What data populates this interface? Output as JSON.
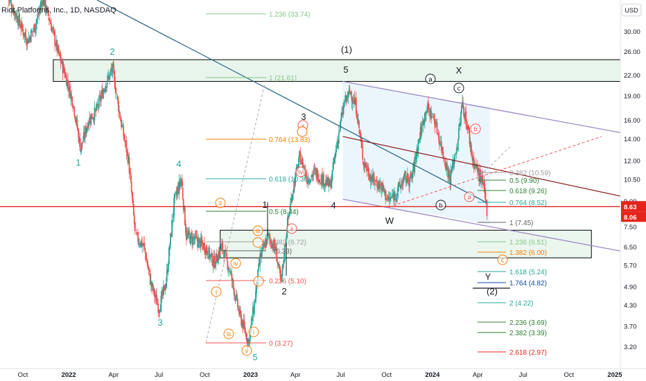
{
  "header": {
    "symbol_title": "Riot Platforms, Inc., 1D, NASDAQ"
  },
  "price_axis": {
    "currency": "USD",
    "ticks": [
      "30.00",
      "26.00",
      "22.00",
      "19.00",
      "16.00",
      "14.00",
      "12.00",
      "10.50",
      "9.00",
      "7.50",
      "6.50",
      "5.70",
      "4.90",
      "4.30",
      "3.70",
      "3.20"
    ],
    "current_price_label": "8.63",
    "second_price_label": "8.06",
    "colors": {
      "up": "#26a69a",
      "down": "#ef5350",
      "current_line": "#e5231b",
      "trend_line": "#2e6b8a",
      "channel": "#9c88c4",
      "rect_fill": "#e6f4ea"
    }
  },
  "time_axis": {
    "ticks": [
      "Oct",
      "2022",
      "Apr",
      "Jul",
      "Oct",
      "2023",
      "Apr",
      "Jul",
      "Oct",
      "2024",
      "Apr",
      "Jul",
      "Oct",
      "2025"
    ]
  },
  "wave_labels": [
    "1",
    "2",
    "3",
    "4",
    "5",
    "1",
    "2",
    "3",
    "4",
    "5",
    "(1)",
    "W",
    "X",
    "Y",
    "(2)"
  ],
  "circle_labels": [
    "a",
    "b",
    "c",
    "a",
    "b",
    "c",
    "ii",
    "iii",
    "iv",
    "i",
    "v",
    "i",
    "ii",
    "iii",
    "iv",
    "x"
  ],
  "fib_top": {
    "levels": [
      "1.236 (33.74)",
      "1 (21.61)",
      "0.764 (13.83)",
      "0.618 (10.30)",
      "0.5 (8.44)",
      "0.382 (6.72)",
      "0.236 (5.10)",
      "0 (3.27)",
      "(6.33)"
    ]
  },
  "fib_right": {
    "levels": [
      "0.382 (10.59)",
      "0.5 (9.90)",
      "0.618 (9.26)",
      "0.764 (8.52)",
      "1 (7.45)",
      "1.236 (6.51)",
      "1.382 (6.00)",
      "1.618 (5.24)",
      "1.764 (4.82)",
      "2 (4.22)",
      "2.236 (3.69)",
      "2.382 (3.39)",
      "2.618 (2.97)"
    ]
  },
  "chart_data": {
    "type": "candlestick",
    "title": "Riot Platforms, Inc., 1D, NASDAQ",
    "x_range": [
      "2021-09",
      "2025-01"
    ],
    "y_scale": "log",
    "y_range": [
      2.9,
      36
    ],
    "current_price": 8.63,
    "close_points": [
      [
        "2021-09-01",
        38
      ],
      [
        "2021-09-20",
        33
      ],
      [
        "2021-10-10",
        28
      ],
      [
        "2021-10-25",
        31
      ],
      [
        "2021-11-10",
        38
      ],
      [
        "2021-11-25",
        32
      ],
      [
        "2021-12-10",
        26
      ],
      [
        "2021-12-25",
        22
      ],
      [
        "2022-01-10",
        18
      ],
      [
        "2022-01-25",
        13
      ],
      [
        "2022-02-10",
        16
      ],
      [
        "2022-02-25",
        17
      ],
      [
        "2022-03-15",
        20.5
      ],
      [
        "2022-03-30",
        23
      ],
      [
        "2022-04-15",
        16
      ],
      [
        "2022-05-01",
        12
      ],
      [
        "2022-05-15",
        7
      ],
      [
        "2022-06-01",
        6.5
      ],
      [
        "2022-06-15",
        5
      ],
      [
        "2022-07-01",
        4.2
      ],
      [
        "2022-07-15",
        5
      ],
      [
        "2022-08-01",
        9
      ],
      [
        "2022-08-15",
        10.5
      ],
      [
        "2022-08-25",
        7
      ],
      [
        "2022-09-15",
        6.8
      ],
      [
        "2022-10-01",
        6.5
      ],
      [
        "2022-10-20",
        5.8
      ],
      [
        "2022-11-05",
        6.5
      ],
      [
        "2022-11-20",
        5.5
      ],
      [
        "2022-12-10",
        4
      ],
      [
        "2022-12-28",
        3.3
      ],
      [
        "2023-01-10",
        4.5
      ],
      [
        "2023-01-20",
        6
      ],
      [
        "2023-02-05",
        7
      ],
      [
        "2023-02-20",
        6.4
      ],
      [
        "2023-03-03",
        5
      ],
      [
        "2023-03-15",
        7.5
      ],
      [
        "2023-03-28",
        10
      ],
      [
        "2023-04-10",
        12.3
      ],
      [
        "2023-04-25",
        10.5
      ],
      [
        "2023-05-10",
        11
      ],
      [
        "2023-05-25",
        10.5
      ],
      [
        "2023-06-10",
        10
      ],
      [
        "2023-06-25",
        14
      ],
      [
        "2023-07-08",
        18
      ],
      [
        "2023-07-20",
        19.5
      ],
      [
        "2023-08-01",
        17.5
      ],
      [
        "2023-08-15",
        12
      ],
      [
        "2023-09-01",
        10.5
      ],
      [
        "2023-09-20",
        10
      ],
      [
        "2023-10-05",
        9
      ],
      [
        "2023-10-20",
        9.5
      ],
      [
        "2023-11-05",
        10.5
      ],
      [
        "2023-11-20",
        10.5
      ],
      [
        "2023-12-05",
        14
      ],
      [
        "2023-12-20",
        17.5
      ],
      [
        "2024-01-05",
        16
      ],
      [
        "2024-01-20",
        13
      ],
      [
        "2024-02-05",
        10.5
      ],
      [
        "2024-02-20",
        13.5
      ],
      [
        "2024-03-01",
        18
      ],
      [
        "2024-03-12",
        15
      ],
      [
        "2024-03-22",
        12
      ],
      [
        "2024-04-02",
        11
      ],
      [
        "2024-04-12",
        10
      ],
      [
        "2024-04-20",
        8.3
      ]
    ],
    "zones": [
      {
        "from_date": "2021-12-01",
        "to_date": "2025-01-10",
        "from_price": 21.0,
        "to_price": 24.5
      },
      {
        "from_date": "2022-11-01",
        "to_date": "2024-11-15",
        "from_price": 6.0,
        "to_price": 7.3
      }
    ]
  }
}
